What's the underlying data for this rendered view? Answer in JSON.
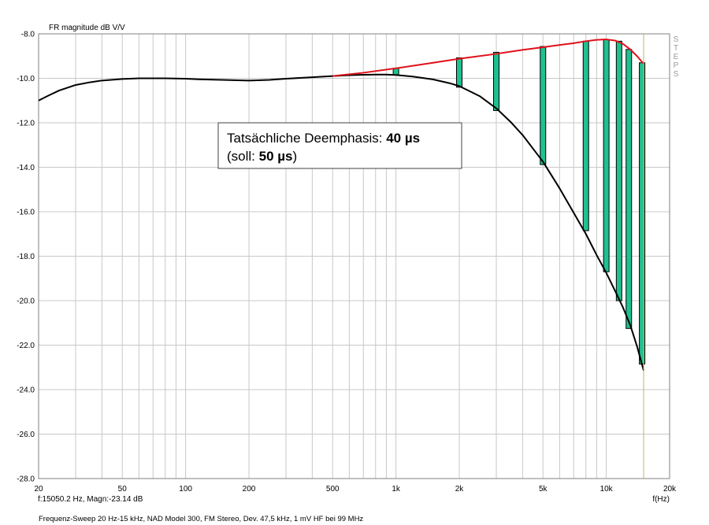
{
  "chart_data": {
    "type": "line",
    "title": "",
    "ylabel": "FR magnitude dB V/V",
    "xlabel": "f(Hz)",
    "x_scale": "log",
    "xlim": [
      20,
      20000
    ],
    "ylim": [
      -28,
      -8
    ],
    "grid": true,
    "y_ticks": [
      "-8.0",
      "-10.0",
      "-12.0",
      "-14.0",
      "-16.0",
      "-18.0",
      "-20.0",
      "-22.0",
      "-24.0",
      "-26.0",
      "-28.0"
    ],
    "y_tick_values": [
      -8,
      -10,
      -12,
      -14,
      -16,
      -18,
      -20,
      -22,
      -24,
      -26,
      -28
    ],
    "x_ticks": [
      {
        "v": 20,
        "label": "20"
      },
      {
        "v": 50,
        "label": "50"
      },
      {
        "v": 100,
        "label": "100"
      },
      {
        "v": 200,
        "label": "200"
      },
      {
        "v": 500,
        "label": "500"
      },
      {
        "v": 1000,
        "label": "1k"
      },
      {
        "v": 2000,
        "label": "2k"
      },
      {
        "v": 5000,
        "label": "5k"
      },
      {
        "v": 10000,
        "label": "10k"
      },
      {
        "v": 20000,
        "label": "20k"
      }
    ],
    "side_label": [
      "S",
      "T",
      "E",
      "P",
      "S"
    ],
    "cursor": {
      "x": 15050.2,
      "readout": "f:15050.2 Hz, Magn:-23.14 dB"
    },
    "annotation": {
      "line1_prefix": "Tatsächliche Deemphasis: ",
      "line1_bold": "40 µs",
      "line2_prefix": "(soll: ",
      "line2_bold": "50 µs",
      "line2_suffix": ")"
    },
    "footer": "Frequenz-Sweep 20 Hz-15 kHz, NAD Model 300, FM Stereo, Dev. 47,5 kHz, 1 mV HF bei 99 MHz",
    "series": [
      {
        "color": "#000000",
        "x": [
          20,
          22,
          25,
          30,
          35,
          40,
          50,
          60,
          70,
          80,
          100,
          120,
          150,
          200,
          250,
          300,
          400,
          500,
          600,
          700,
          800,
          900,
          1000,
          1200,
          1500,
          1800,
          2000,
          2500,
          3000,
          3500,
          4000,
          5000,
          6000,
          7000,
          8000,
          9000,
          10000,
          11000,
          12000,
          13000,
          14000,
          15050
        ],
        "y": [
          -11.0,
          -10.8,
          -10.55,
          -10.3,
          -10.18,
          -10.1,
          -10.03,
          -10.0,
          -10.0,
          -10.0,
          -10.02,
          -10.05,
          -10.07,
          -10.1,
          -10.07,
          -10.02,
          -9.95,
          -9.9,
          -9.86,
          -9.84,
          -9.83,
          -9.83,
          -9.85,
          -9.92,
          -10.05,
          -10.22,
          -10.35,
          -10.8,
          -11.35,
          -11.95,
          -12.55,
          -13.75,
          -14.95,
          -16.05,
          -17.0,
          -17.95,
          -18.75,
          -19.55,
          -20.3,
          -21.1,
          -22.05,
          -23.14
        ]
      },
      {
        "color": "#e0101a",
        "x": [
          500,
          700,
          1000,
          1500,
          2000,
          3000,
          4000,
          5000,
          6000,
          7000,
          8000,
          9000,
          10000,
          11000,
          12000,
          13000,
          14000,
          15050
        ],
        "y": [
          -9.9,
          -9.75,
          -9.55,
          -9.3,
          -9.12,
          -8.9,
          -8.72,
          -8.6,
          -8.5,
          -8.42,
          -8.33,
          -8.27,
          -8.25,
          -8.3,
          -8.45,
          -8.7,
          -9.0,
          -9.35
        ]
      }
    ],
    "steps": {
      "color": "#20c090",
      "bars": [
        {
          "x": 1000,
          "top": -9.55,
          "bottom": -9.85
        },
        {
          "x": 2000,
          "top": -9.08,
          "bottom": -10.4
        },
        {
          "x": 3000,
          "top": -8.83,
          "bottom": -11.45
        },
        {
          "x": 5000,
          "top": -8.57,
          "bottom": -13.88
        },
        {
          "x": 8000,
          "top": -8.33,
          "bottom": -16.85
        },
        {
          "x": 10000,
          "top": -8.25,
          "bottom": -18.7
        },
        {
          "x": 11500,
          "top": -8.33,
          "bottom": -20.0
        },
        {
          "x": 12800,
          "top": -8.7,
          "bottom": -21.25
        },
        {
          "x": 14800,
          "top": -9.3,
          "bottom": -22.85
        }
      ]
    }
  }
}
